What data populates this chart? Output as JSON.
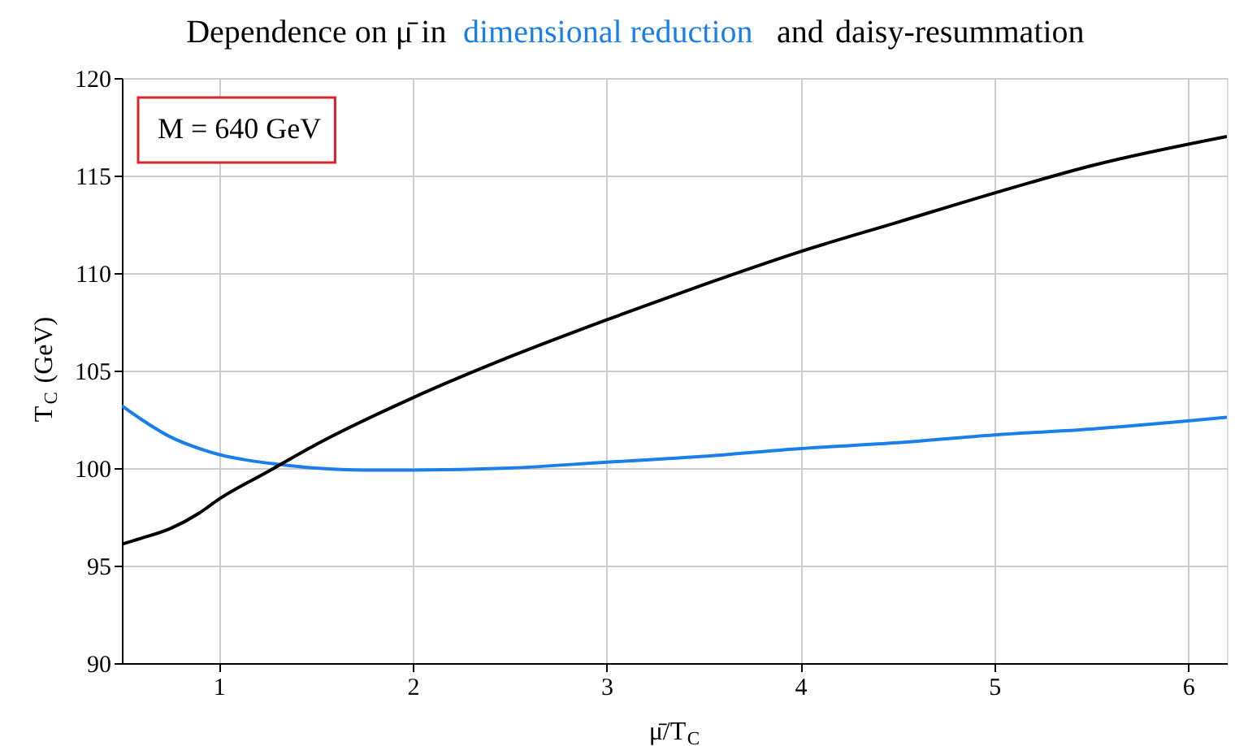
{
  "chart_data": {
    "type": "line",
    "title": "Dependence on μ̄ in",
    "xlabel": "μ̄/T$_{C}$",
    "ylabel": "T$_{C}$ (GeV)",
    "xlim": [
      0.5,
      6.2
    ],
    "xticks": [
      1,
      2,
      3,
      4,
      5,
      6
    ],
    "ylim": [
      90,
      120
    ],
    "yticks": [
      90,
      95,
      100,
      105,
      110,
      115,
      120
    ],
    "grid": true,
    "legend": false,
    "annotations": [
      "M = 640 GeV",
      "and"
    ],
    "series": [
      {
        "name": "dimensional reduction",
        "color": "#1a7fe8",
        "x": [
          0.5,
          0.6,
          0.75,
          0.9,
          1,
          1.15,
          1.3,
          1.5,
          1.75,
          2,
          2.5,
          3,
          3.5,
          4,
          4.5,
          5,
          5.5,
          6.2
        ],
        "values": [
          103.2,
          102.5,
          101.6,
          101.0,
          100.7,
          100.4,
          100.2,
          100.0,
          99.9,
          99.9,
          100.0,
          100.3,
          100.6,
          101.0,
          101.3,
          101.7,
          102.0,
          102.6
        ]
      },
      {
        "name": "daisy-resummation",
        "color": "#000000",
        "x": [
          0.5,
          0.6,
          0.75,
          0.9,
          1,
          1.25,
          1.5,
          2,
          2.5,
          3,
          3.5,
          4,
          4.5,
          5,
          5.5,
          6.2
        ],
        "values": [
          96.1,
          96.4,
          96.9,
          97.7,
          98.4,
          99.8,
          101.2,
          103.6,
          105.7,
          107.6,
          109.4,
          111.1,
          112.6,
          114.1,
          115.5,
          117.0
        ]
      }
    ]
  }
}
